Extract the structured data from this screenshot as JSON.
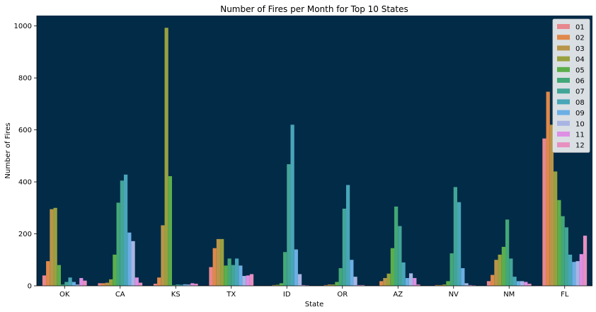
{
  "chart_data": {
    "type": "bar",
    "title": "Number of Fires per Month for Top 10 States",
    "xlabel": "State",
    "ylabel": "Number of Fires",
    "ylim": [
      0,
      1040
    ],
    "yticks": [
      0,
      200,
      400,
      600,
      800,
      1000
    ],
    "grid": false,
    "legend_position": "top-right",
    "plot_background": "#022B47",
    "categories": [
      "OK",
      "CA",
      "KS",
      "TX",
      "ID",
      "OR",
      "AZ",
      "NV",
      "NM",
      "FL"
    ],
    "series": [
      {
        "name": "01",
        "color": "#E8878E",
        "values": [
          40,
          10,
          8,
          72,
          0,
          0,
          0,
          0,
          18,
          567
        ]
      },
      {
        "name": "02",
        "color": "#E0894A",
        "values": [
          95,
          10,
          32,
          145,
          0,
          3,
          18,
          3,
          42,
          747
        ]
      },
      {
        "name": "03",
        "color": "#B8954A",
        "values": [
          295,
          12,
          233,
          180,
          3,
          5,
          30,
          3,
          100,
          620
        ]
      },
      {
        "name": "04",
        "color": "#99A13F",
        "values": [
          300,
          25,
          993,
          180,
          4,
          5,
          47,
          5,
          120,
          440
        ]
      },
      {
        "name": "05",
        "color": "#5CAE4B",
        "values": [
          80,
          120,
          422,
          78,
          10,
          15,
          145,
          18,
          150,
          330
        ]
      },
      {
        "name": "06",
        "color": "#43A877",
        "values": [
          5,
          320,
          3,
          105,
          130,
          68,
          305,
          125,
          255,
          268
        ]
      },
      {
        "name": "07",
        "color": "#43A597",
        "values": [
          15,
          405,
          5,
          80,
          468,
          297,
          230,
          380,
          105,
          225
        ]
      },
      {
        "name": "08",
        "color": "#48A6B8",
        "values": [
          32,
          428,
          4,
          105,
          620,
          388,
          90,
          322,
          35,
          120
        ]
      },
      {
        "name": "09",
        "color": "#6BAFE4",
        "values": [
          15,
          205,
          6,
          78,
          140,
          100,
          30,
          68,
          18,
          92
        ]
      },
      {
        "name": "10",
        "color": "#A8B5E4",
        "values": [
          5,
          172,
          5,
          38,
          45,
          35,
          48,
          10,
          18,
          95
        ]
      },
      {
        "name": "11",
        "color": "#DE8FE4",
        "values": [
          30,
          32,
          10,
          40,
          3,
          3,
          30,
          3,
          15,
          122
        ]
      },
      {
        "name": "12",
        "color": "#E88FC0",
        "values": [
          20,
          12,
          8,
          45,
          2,
          3,
          5,
          2,
          8,
          193
        ]
      }
    ]
  }
}
